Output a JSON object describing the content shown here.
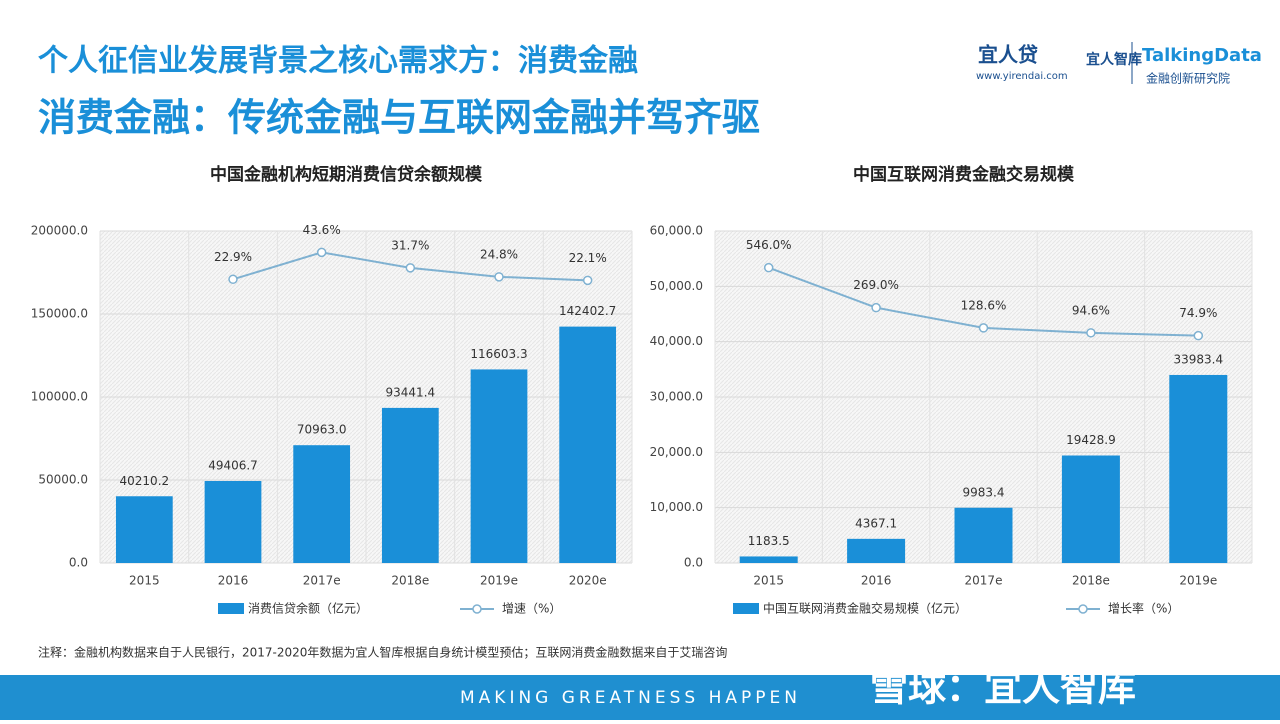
{
  "header": {
    "title": "个人征信业发展背景之核心需求方：消费金融",
    "subtitle": "消费金融：传统金融与互联网金融并驾齐驱",
    "logo_main": "宜人贷",
    "logo_url": "www.yirendai.com",
    "logo_think": "宜人智库",
    "logo_td": "TalkingData",
    "logo_td_sub": "金融创新研究院"
  },
  "chart_data": [
    {
      "type": "bar",
      "title": "中国金融机构短期消费信贷余额规模",
      "categories": [
        "2015",
        "2016",
        "2017e",
        "2018e",
        "2019e",
        "2020e"
      ],
      "series": [
        {
          "name": "消费信贷余额（亿元）",
          "color": "#1a8fd8",
          "values": [
            40210.2,
            49406.7,
            70963.0,
            93441.4,
            116603.3,
            142402.7
          ],
          "value_labels": [
            "40210.2",
            "49406.7",
            "70963.0",
            "93441.4",
            "116603.3",
            "142402.7"
          ]
        },
        {
          "name": "增速（%）",
          "type": "line",
          "axis": "y2",
          "color": "#7fb1d1",
          "values": [
            null,
            22.9,
            43.6,
            31.7,
            24.8,
            22.1
          ],
          "value_labels": [
            null,
            "22.9%",
            "43.6%",
            "31.7%",
            "24.8%",
            "22.1%"
          ]
        }
      ],
      "ylim": [
        0,
        200000
      ],
      "yticks": [
        {
          "value": 0,
          "label": "0.0"
        },
        {
          "value": 50000,
          "label": "50000.0"
        },
        {
          "value": 100000,
          "label": "100000.0"
        },
        {
          "value": 150000,
          "label": "150000.0"
        },
        {
          "value": 200000,
          "label": "200000.0"
        }
      ],
      "y2lim": [
        -195,
        60
      ],
      "grid": true
    },
    {
      "type": "bar",
      "title": "中国互联网消费金融交易规模",
      "categories": [
        "2015",
        "2016",
        "2017e",
        "2018e",
        "2019e"
      ],
      "series": [
        {
          "name": "中国互联网消费金融交易规模（亿元）",
          "color": "#1a8fd8",
          "values": [
            1183.5,
            4367.1,
            9983.4,
            19428.9,
            33983.4
          ]
        },
        {
          "name": "增长率（%）",
          "type": "line",
          "axis": "y2",
          "color": "#7fb1d1",
          "values": [
            546.0,
            269.0,
            128.6,
            94.6,
            74.9
          ],
          "value_labels": [
            "546.0%",
            "269.0%",
            "128.6%",
            "94.6%",
            "74.9%"
          ]
        }
      ],
      "ylim": [
        0,
        60000
      ],
      "yticks": [
        {
          "value": 0,
          "label": "0.0"
        },
        {
          "value": 10000,
          "label": "10,000.0"
        },
        {
          "value": 20000,
          "label": "20,000.0"
        },
        {
          "value": 30000,
          "label": "30,000.0"
        },
        {
          "value": 40000,
          "label": "40,000.0"
        },
        {
          "value": 50000,
          "label": "50,000.0"
        },
        {
          "value": 60000,
          "label": "60,000.0"
        }
      ],
      "y2lim": [
        -1500,
        800
      ],
      "grid": true
    }
  ],
  "footer": {
    "note": "注释：金融机构数据来自于人民银行，2017-2020年数据为宜人智库根据自身统计模型预估；互联网消费金融数据来自于艾瑞咨询",
    "slogan": "MAKING GREATNESS HAPPEN",
    "watermark": "雪球：宜人智库"
  }
}
